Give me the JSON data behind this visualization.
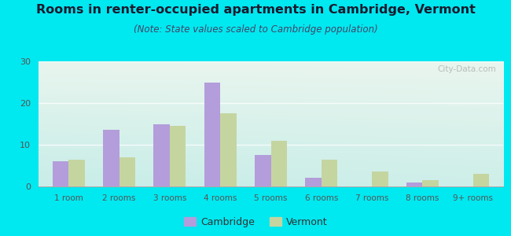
{
  "title": "Rooms in renter-occupied apartments in Cambridge, Vermont",
  "subtitle": "(Note: State values scaled to Cambridge population)",
  "categories": [
    "1 room",
    "2 rooms",
    "3 rooms",
    "4 rooms",
    "5 rooms",
    "6 rooms",
    "7 rooms",
    "8 rooms",
    "9+ rooms"
  ],
  "cambridge_values": [
    6,
    13.5,
    15,
    25,
    7.5,
    2,
    0,
    1,
    0
  ],
  "vermont_values": [
    6.5,
    7,
    14.5,
    17.5,
    11,
    6.5,
    3.5,
    1.5,
    3
  ],
  "cambridge_color": "#b39ddb",
  "vermont_color": "#c5d5a0",
  "ylim": [
    0,
    30
  ],
  "yticks": [
    0,
    10,
    20,
    30
  ],
  "background_color": "#00e8f0",
  "title_fontsize": 11.5,
  "subtitle_fontsize": 8.5,
  "legend_cambridge": "Cambridge",
  "legend_vermont": "Vermont",
  "watermark": "City-Data.com",
  "grid_color": "#ffffff",
  "tick_color": "#555555",
  "title_color": "#1a1a2e"
}
